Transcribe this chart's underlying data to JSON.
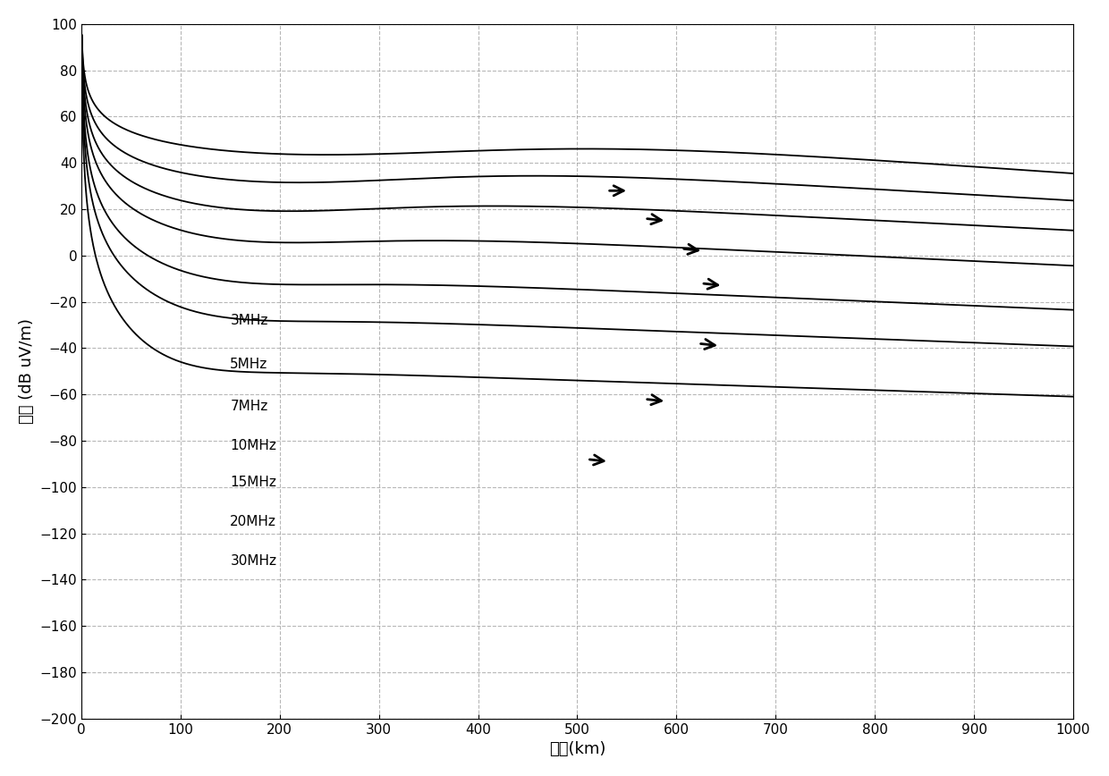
{
  "frequencies_MHz": [
    3,
    5,
    7,
    10,
    15,
    20,
    30
  ],
  "xlim": [
    0,
    1000
  ],
  "ylim": [
    -200,
    100
  ],
  "xlabel": "距离(km)",
  "ylabel": "场强 (dB uV/m)",
  "xticks": [
    0,
    100,
    200,
    300,
    400,
    500,
    600,
    700,
    800,
    900,
    1000
  ],
  "yticks": [
    100,
    80,
    60,
    40,
    20,
    0,
    -20,
    -40,
    -60,
    -80,
    -100,
    -120,
    -140,
    -160,
    -180,
    -200
  ],
  "background_color": "#ffffff",
  "line_color": "#000000",
  "grid_color": "#999999",
  "line_width": 1.3,
  "dpi": 100,
  "label_data": [
    [
      150,
      -28,
      "3MHz"
    ],
    [
      150,
      -47,
      "5MHz"
    ],
    [
      150,
      -65,
      "7MHz"
    ],
    [
      150,
      -82,
      "10MHz"
    ],
    [
      150,
      -98,
      "15MHz"
    ],
    [
      150,
      -115,
      "20MHz"
    ],
    [
      150,
      -132,
      "30MHz"
    ]
  ],
  "arrow_data": [
    [
      530,
      28,
      552,
      28
    ],
    [
      568,
      16,
      590,
      15
    ],
    [
      605,
      3,
      627,
      2
    ],
    [
      625,
      -12,
      647,
      -13
    ],
    [
      622,
      -38,
      644,
      -39
    ],
    [
      568,
      -62,
      590,
      -63
    ],
    [
      510,
      -88,
      532,
      -89
    ]
  ]
}
